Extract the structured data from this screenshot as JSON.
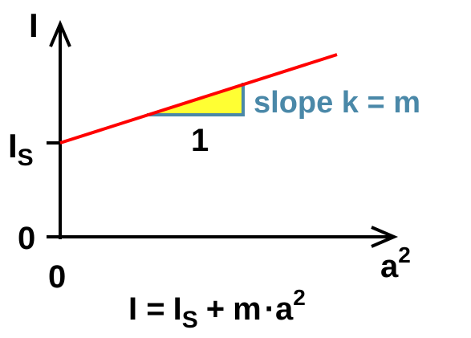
{
  "axes": {
    "y_label": "I",
    "x_label": {
      "base": "a",
      "sup": "2"
    },
    "y_origin": "0",
    "x_origin": "0",
    "intercept": {
      "base": "I",
      "sub": "S"
    }
  },
  "triangle": {
    "run": "1",
    "slope": "slope k = m"
  },
  "formula": {
    "lhs": "I =",
    "term1": {
      "base": "I",
      "sub": "S"
    },
    "op": "+",
    "term2": {
      "coef": "m",
      "dot": "·",
      "base": "a",
      "sup": "2"
    }
  }
}
